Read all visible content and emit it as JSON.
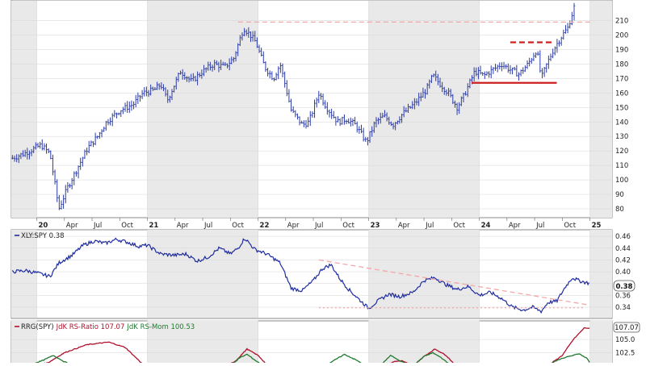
{
  "chart_data": [
    {
      "type": "ohlc",
      "panel": "price",
      "y_axis_ticks": [
        80,
        90,
        100,
        110,
        120,
        130,
        140,
        150,
        160,
        170,
        180,
        190,
        200,
        210
      ],
      "ylim": [
        75,
        222
      ],
      "x_axis_labels": [
        "20",
        "Apr",
        "Jul",
        "Oct",
        "21",
        "Apr",
        "Jul",
        "Oct",
        "22",
        "Apr",
        "Jul",
        "Oct",
        "23",
        "Apr",
        "Jul",
        "Oct",
        "24",
        "Apr",
        "Jul",
        "Oct",
        "25"
      ],
      "x_axis_label_values": [
        2020.0,
        2020.25,
        2020.5,
        2020.75,
        2021.0,
        2021.25,
        2021.5,
        2021.75,
        2022.0,
        2022.25,
        2022.5,
        2022.75,
        2023.0,
        2023.25,
        2023.5,
        2023.75,
        2024.0,
        2024.25,
        2024.5,
        2024.75,
        2025.0
      ],
      "xlim": [
        2019.77,
        2025.2
      ],
      "series_anchors": [
        {
          "t": 2019.78,
          "v": 115
        },
        {
          "t": 2019.88,
          "v": 118
        },
        {
          "t": 2019.96,
          "v": 121
        },
        {
          "t": 2020.04,
          "v": 124
        },
        {
          "t": 2020.12,
          "v": 118
        },
        {
          "t": 2020.2,
          "v": 80
        },
        {
          "t": 2020.28,
          "v": 95
        },
        {
          "t": 2020.38,
          "v": 110
        },
        {
          "t": 2020.46,
          "v": 122
        },
        {
          "t": 2020.55,
          "v": 130
        },
        {
          "t": 2020.63,
          "v": 140
        },
        {
          "t": 2020.75,
          "v": 148
        },
        {
          "t": 2020.87,
          "v": 152
        },
        {
          "t": 2020.96,
          "v": 160
        },
        {
          "t": 2021.06,
          "v": 162
        },
        {
          "t": 2021.12,
          "v": 166
        },
        {
          "t": 2021.18,
          "v": 155
        },
        {
          "t": 2021.3,
          "v": 175
        },
        {
          "t": 2021.4,
          "v": 168
        },
        {
          "t": 2021.5,
          "v": 175
        },
        {
          "t": 2021.6,
          "v": 180
        },
        {
          "t": 2021.7,
          "v": 178
        },
        {
          "t": 2021.78,
          "v": 184
        },
        {
          "t": 2021.87,
          "v": 205
        },
        {
          "t": 2021.93,
          "v": 200
        },
        {
          "t": 2021.98,
          "v": 195
        },
        {
          "t": 2022.06,
          "v": 178
        },
        {
          "t": 2022.14,
          "v": 170
        },
        {
          "t": 2022.2,
          "v": 180
        },
        {
          "t": 2022.3,
          "v": 148
        },
        {
          "t": 2022.4,
          "v": 138
        },
        {
          "t": 2022.46,
          "v": 140
        },
        {
          "t": 2022.55,
          "v": 160
        },
        {
          "t": 2022.62,
          "v": 150
        },
        {
          "t": 2022.72,
          "v": 140
        },
        {
          "t": 2022.8,
          "v": 142
        },
        {
          "t": 2022.88,
          "v": 138
        },
        {
          "t": 2022.98,
          "v": 126
        },
        {
          "t": 2023.06,
          "v": 140
        },
        {
          "t": 2023.14,
          "v": 144
        },
        {
          "t": 2023.22,
          "v": 138
        },
        {
          "t": 2023.3,
          "v": 145
        },
        {
          "t": 2023.42,
          "v": 153
        },
        {
          "t": 2023.52,
          "v": 162
        },
        {
          "t": 2023.58,
          "v": 172
        },
        {
          "t": 2023.66,
          "v": 165
        },
        {
          "t": 2023.72,
          "v": 160
        },
        {
          "t": 2023.8,
          "v": 150
        },
        {
          "t": 2023.86,
          "v": 158
        },
        {
          "t": 2023.96,
          "v": 175
        },
        {
          "t": 2024.04,
          "v": 172
        },
        {
          "t": 2024.12,
          "v": 176
        },
        {
          "t": 2024.2,
          "v": 180
        },
        {
          "t": 2024.28,
          "v": 176
        },
        {
          "t": 2024.36,
          "v": 173
        },
        {
          "t": 2024.44,
          "v": 180
        },
        {
          "t": 2024.52,
          "v": 190
        },
        {
          "t": 2024.56,
          "v": 170
        },
        {
          "t": 2024.6,
          "v": 178
        },
        {
          "t": 2024.67,
          "v": 190
        },
        {
          "t": 2024.75,
          "v": 200
        },
        {
          "t": 2024.8,
          "v": 205
        },
        {
          "t": 2024.86,
          "v": 220
        }
      ],
      "reference_lines": [
        {
          "style": "dashed",
          "color": "#f4a7a7",
          "t1": 2021.82,
          "t2": 2025.0,
          "v": 209
        },
        {
          "style": "solid",
          "color": "#cc1f1f",
          "t1": 2023.93,
          "t2": 2024.7,
          "v": 167
        },
        {
          "style": "dashed",
          "color": "#cc1f1f",
          "t1": 2024.28,
          "t2": 2024.67,
          "v": 195
        }
      ]
    },
    {
      "type": "line",
      "panel": "relative-strength",
      "label": "XLY:SPY 0.38",
      "last_value": "0.38",
      "y_axis_ticks": [
        "0.46",
        "0.44",
        "0.42",
        "0.40",
        "0.38",
        "0.36",
        "0.34"
      ],
      "y_axis_tick_values": [
        0.46,
        0.44,
        0.42,
        0.4,
        0.38,
        0.36,
        0.34
      ],
      "ylim": [
        0.325,
        0.467
      ],
      "series_anchors": [
        {
          "t": 2019.78,
          "v": 0.4
        },
        {
          "t": 2019.9,
          "v": 0.402
        },
        {
          "t": 2020.0,
          "v": 0.398
        },
        {
          "t": 2020.12,
          "v": 0.392
        },
        {
          "t": 2020.2,
          "v": 0.415
        },
        {
          "t": 2020.32,
          "v": 0.428
        },
        {
          "t": 2020.42,
          "v": 0.445
        },
        {
          "t": 2020.52,
          "v": 0.452
        },
        {
          "t": 2020.62,
          "v": 0.448
        },
        {
          "t": 2020.72,
          "v": 0.455
        },
        {
          "t": 2020.82,
          "v": 0.45
        },
        {
          "t": 2020.92,
          "v": 0.443
        },
        {
          "t": 2021.0,
          "v": 0.445
        },
        {
          "t": 2021.12,
          "v": 0.43
        },
        {
          "t": 2021.25,
          "v": 0.428
        },
        {
          "t": 2021.35,
          "v": 0.43
        },
        {
          "t": 2021.45,
          "v": 0.418
        },
        {
          "t": 2021.55,
          "v": 0.425
        },
        {
          "t": 2021.65,
          "v": 0.44
        },
        {
          "t": 2021.75,
          "v": 0.43
        },
        {
          "t": 2021.82,
          "v": 0.44
        },
        {
          "t": 2021.88,
          "v": 0.457
        },
        {
          "t": 2021.97,
          "v": 0.438
        },
        {
          "t": 2022.08,
          "v": 0.43
        },
        {
          "t": 2022.2,
          "v": 0.415
        },
        {
          "t": 2022.3,
          "v": 0.372
        },
        {
          "t": 2022.4,
          "v": 0.368
        },
        {
          "t": 2022.5,
          "v": 0.385
        },
        {
          "t": 2022.58,
          "v": 0.405
        },
        {
          "t": 2022.66,
          "v": 0.412
        },
        {
          "t": 2022.74,
          "v": 0.388
        },
        {
          "t": 2022.82,
          "v": 0.37
        },
        {
          "t": 2022.92,
          "v": 0.352
        },
        {
          "t": 2023.0,
          "v": 0.338
        },
        {
          "t": 2023.08,
          "v": 0.35
        },
        {
          "t": 2023.18,
          "v": 0.362
        },
        {
          "t": 2023.28,
          "v": 0.358
        },
        {
          "t": 2023.4,
          "v": 0.365
        },
        {
          "t": 2023.5,
          "v": 0.385
        },
        {
          "t": 2023.6,
          "v": 0.39
        },
        {
          "t": 2023.7,
          "v": 0.378
        },
        {
          "t": 2023.8,
          "v": 0.37
        },
        {
          "t": 2023.9,
          "v": 0.375
        },
        {
          "t": 2024.0,
          "v": 0.36
        },
        {
          "t": 2024.1,
          "v": 0.365
        },
        {
          "t": 2024.2,
          "v": 0.355
        },
        {
          "t": 2024.3,
          "v": 0.34
        },
        {
          "t": 2024.4,
          "v": 0.335
        },
        {
          "t": 2024.48,
          "v": 0.34
        },
        {
          "t": 2024.56,
          "v": 0.333
        },
        {
          "t": 2024.62,
          "v": 0.348
        },
        {
          "t": 2024.7,
          "v": 0.35
        },
        {
          "t": 2024.78,
          "v": 0.375
        },
        {
          "t": 2024.84,
          "v": 0.39
        },
        {
          "t": 2024.9,
          "v": 0.385
        },
        {
          "t": 2024.96,
          "v": 0.382
        },
        {
          "t": 2025.0,
          "v": 0.38
        }
      ],
      "reference_lines": [
        {
          "style": "dashed",
          "color": "#f4a7a7",
          "t1": 2022.55,
          "v1": 0.42,
          "t2": 2024.98,
          "v2": 0.344
        },
        {
          "style": "dotted",
          "color": "#f4a7a7",
          "t1": 2022.55,
          "v1": 0.339,
          "t2": 2024.95,
          "v2": 0.339
        }
      ]
    },
    {
      "type": "line",
      "panel": "rrg",
      "label_prefix": "RRG(SPY)",
      "label_ratio": "JdK RS-Ratio 107.07",
      "label_mom": "JdK RS-Mom 100.53",
      "last_value": "107.07",
      "y_axis_ticks": [
        "105.0",
        "102.5"
      ],
      "y_axis_tick_values": [
        105.0,
        102.5
      ],
      "ylim": [
        100.0,
        108.2
      ],
      "series": [
        {
          "name": "JdK RS-Ratio",
          "color": "#b0102c",
          "anchors": [
            {
              "t": 2019.9,
              "v": 99.8
            },
            {
              "t": 2020.1,
              "v": 100.6
            },
            {
              "t": 2020.25,
              "v": 102.5
            },
            {
              "t": 2020.45,
              "v": 104.0
            },
            {
              "t": 2020.65,
              "v": 104.5
            },
            {
              "t": 2020.8,
              "v": 103.5
            },
            {
              "t": 2020.9,
              "v": 101.5
            },
            {
              "t": 2021.0,
              "v": 99.5
            },
            {
              "t": 2021.7,
              "v": 99.8
            },
            {
              "t": 2021.8,
              "v": 101.0
            },
            {
              "t": 2021.9,
              "v": 103.2
            },
            {
              "t": 2022.0,
              "v": 102.0
            },
            {
              "t": 2022.1,
              "v": 99.8
            },
            {
              "t": 2023.15,
              "v": 99.8
            },
            {
              "t": 2023.22,
              "v": 100.8
            },
            {
              "t": 2023.3,
              "v": 101.0
            },
            {
              "t": 2023.4,
              "v": 100.0
            },
            {
              "t": 2023.5,
              "v": 101.8
            },
            {
              "t": 2023.6,
              "v": 103.2
            },
            {
              "t": 2023.7,
              "v": 102.0
            },
            {
              "t": 2023.8,
              "v": 99.8
            },
            {
              "t": 2024.55,
              "v": 99.8
            },
            {
              "t": 2024.65,
              "v": 100.5
            },
            {
              "t": 2024.75,
              "v": 102.0
            },
            {
              "t": 2024.85,
              "v": 105.0
            },
            {
              "t": 2024.95,
              "v": 107.2
            },
            {
              "t": 2025.0,
              "v": 107.07
            }
          ]
        },
        {
          "name": "JdK RS-Mom",
          "color": "#1f7a2e",
          "anchors": [
            {
              "t": 2019.9,
              "v": 100.0
            },
            {
              "t": 2020.05,
              "v": 101.0
            },
            {
              "t": 2020.15,
              "v": 102.0
            },
            {
              "t": 2020.25,
              "v": 100.8
            },
            {
              "t": 2020.35,
              "v": 100.0
            },
            {
              "t": 2021.75,
              "v": 100.0
            },
            {
              "t": 2021.83,
              "v": 101.5
            },
            {
              "t": 2021.9,
              "v": 102.2
            },
            {
              "t": 2021.98,
              "v": 101.0
            },
            {
              "t": 2022.05,
              "v": 100.0
            },
            {
              "t": 2022.6,
              "v": 100.0
            },
            {
              "t": 2022.7,
              "v": 101.2
            },
            {
              "t": 2022.78,
              "v": 102.2
            },
            {
              "t": 2022.88,
              "v": 101.2
            },
            {
              "t": 2022.98,
              "v": 100.0
            },
            {
              "t": 2023.1,
              "v": 100.0
            },
            {
              "t": 2023.2,
              "v": 102.0
            },
            {
              "t": 2023.3,
              "v": 100.8
            },
            {
              "t": 2023.4,
              "v": 100.0
            },
            {
              "t": 2023.5,
              "v": 101.8
            },
            {
              "t": 2023.58,
              "v": 102.5
            },
            {
              "t": 2023.66,
              "v": 101.5
            },
            {
              "t": 2023.75,
              "v": 100.0
            },
            {
              "t": 2024.6,
              "v": 100.0
            },
            {
              "t": 2024.7,
              "v": 101.0
            },
            {
              "t": 2024.8,
              "v": 101.8
            },
            {
              "t": 2024.9,
              "v": 102.3
            },
            {
              "t": 2024.97,
              "v": 101.5
            },
            {
              "t": 2025.0,
              "v": 100.53
            }
          ]
        }
      ]
    }
  ],
  "colors": {
    "price": "#2b3ba8",
    "rs_line": "#1e2ca0",
    "band": "#e9e9e9",
    "grid": "#d6d6d6",
    "border": "#8a8a8a"
  }
}
